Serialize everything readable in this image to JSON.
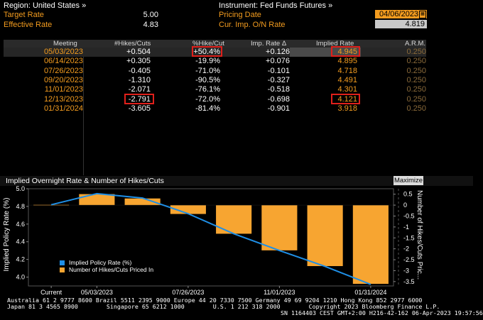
{
  "header": {
    "region": "Region: United States »",
    "instrument": "Instrument: Fed Funds Futures »",
    "target_rate_label": "Target Rate",
    "target_rate_value": "5.00",
    "effective_rate_label": "Effective Rate",
    "effective_rate_value": "4.83",
    "pricing_date_label": "Pricing Date",
    "pricing_date_value": "04/06/2023",
    "cur_imp_label": "Cur. Imp. O/N Rate",
    "cur_imp_value": "4.819"
  },
  "table": {
    "columns": [
      "Meeting",
      "#Hikes/Cuts",
      "%Hike/Cut",
      "Imp. Rate Δ",
      "Implied Rate",
      "A.R.M."
    ],
    "rows": [
      {
        "meeting": "05/03/2023",
        "hikes": "+0.504",
        "pct": "+50.4%",
        "delta": "+0.126",
        "implied": "4.945",
        "arm": "0.250"
      },
      {
        "meeting": "06/14/2023",
        "hikes": "+0.305",
        "pct": "-19.9%",
        "delta": "+0.076",
        "implied": "4.895",
        "arm": "0.250"
      },
      {
        "meeting": "07/26/2023",
        "hikes": "-0.405",
        "pct": "-71.0%",
        "delta": "-0.101",
        "implied": "4.718",
        "arm": "0.250"
      },
      {
        "meeting": "09/20/2023",
        "hikes": "-1.310",
        "pct": "-90.5%",
        "delta": "-0.327",
        "implied": "4.491",
        "arm": "0.250"
      },
      {
        "meeting": "11/01/2023",
        "hikes": "-2.071",
        "pct": "-76.1%",
        "delta": "-0.518",
        "implied": "4.301",
        "arm": "0.250"
      },
      {
        "meeting": "12/13/2023",
        "hikes": "-2.791",
        "pct": "-72.0%",
        "delta": "-0.698",
        "implied": "4.121",
        "arm": "0.250"
      },
      {
        "meeting": "01/31/2024",
        "hikes": "-3.605",
        "pct": "-81.4%",
        "delta": "-0.901",
        "implied": "3.918",
        "arm": "0.250"
      }
    ]
  },
  "chart_panel": {
    "title": "Implied Overnight Rate & Number of Hikes/Cuts",
    "maximize_label": "Maximize"
  },
  "chart_data": {
    "type": "bar+line",
    "title": "Implied Overnight Rate & Number of Hikes/Cuts",
    "categories": [
      "Current",
      "05/03/2023",
      "06/14/2023",
      "07/26/2023",
      "09/20/2023",
      "11/01/2023",
      "12/13/2023",
      "01/31/2024"
    ],
    "x_tick_labels": [
      "Current",
      "05/03/2023",
      "07/26/2023",
      "11/01/2023",
      "01/31/2024"
    ],
    "series": [
      {
        "name": "Implied Policy Rate (%)",
        "kind": "line",
        "axis": "left",
        "values": [
          4.819,
          4.945,
          4.895,
          4.718,
          4.491,
          4.301,
          4.121,
          3.918
        ],
        "color": "#1f8fe6"
      },
      {
        "name": "Number of Hikes/Cuts Priced In",
        "kind": "bar",
        "axis": "right",
        "values": [
          0,
          0.504,
          0.305,
          -0.405,
          -1.31,
          -2.071,
          -2.791,
          -3.605
        ],
        "color": "#f7a531"
      }
    ],
    "ylabel_left": "Implied Policy Rate (%)",
    "ylabel_right": "Number of Hikes/Cuts Pric...",
    "ylim_left": [
      3.9,
      5.0
    ],
    "left_ticks": [
      "5.0",
      "4.8",
      "4.6",
      "4.4",
      "4.2",
      "4.0"
    ],
    "ylim_right": [
      -3.7,
      0.75
    ],
    "right_ticks": [
      "0.5",
      "0",
      "-0.5",
      "-1",
      "-1.5",
      "-2",
      "-2.5",
      "-3",
      "-3.5"
    ],
    "legend_position": "bottom-left"
  },
  "footer": {
    "line1": "Australia 61 2 9777 8600 Brazil 5511 2395 9000 Europe 44 20 7330 7500 Germany 49 69 9204 1210 Hong Kong 852 2977 6000",
    "line2": "Japan 81 3 4565 8900        Singapore 65 6212 1000        U.S. 1 212 318 2000        Copyright 2023 Bloomberg Finance L.P.",
    "line3": "SN 1164403 CEST GMT+2:00 H216-42-162 06-Apr-2023 19:57:56"
  },
  "colors": {
    "accent": "#f39c1f",
    "bar": "#f7a531",
    "line": "#1f8fe6",
    "highlight": "#e0201b"
  }
}
